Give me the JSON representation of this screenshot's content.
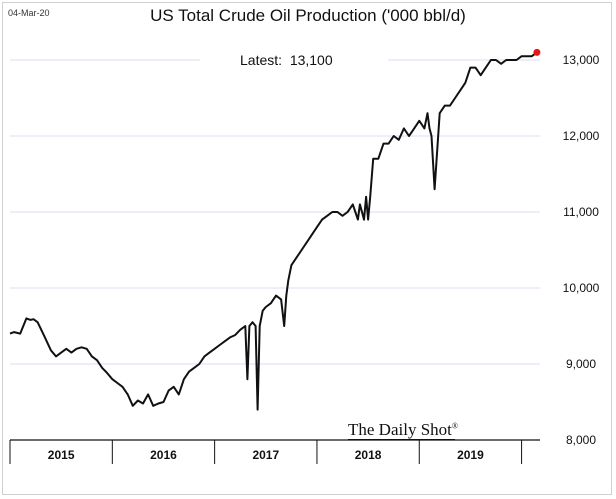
{
  "date_stamp": "04-Mar-20",
  "watermark": "The Daily Shot",
  "watermark_mark": "®",
  "latest": {
    "label": "Latest:",
    "value": "13,100"
  },
  "colors": {
    "line": "#111111",
    "last_point": "#e8141b",
    "grid": "#d9dff0",
    "axis": "#111111"
  },
  "chart_data": {
    "type": "line",
    "title": "US Total Crude Oil Production ('000 bbl/d)",
    "xlabel": "",
    "ylabel": "",
    "ylim": [
      8000,
      13000
    ],
    "yticks": [
      8000,
      9000,
      10000,
      11000,
      12000,
      13000
    ],
    "ytick_labels": [
      "8,000",
      "9,000",
      "10,000",
      "11,000",
      "12,000",
      "13,000"
    ],
    "x_range": [
      2015.0,
      2020.18
    ],
    "year_labels": [
      "2015",
      "2016",
      "2017",
      "2018",
      "2019"
    ],
    "grid": "horizontal",
    "series": [
      {
        "x": [
          2015.0,
          2015.04,
          2015.1,
          2015.16,
          2015.2,
          2015.23,
          2015.27,
          2015.33,
          2015.4,
          2015.45,
          2015.5,
          2015.55,
          2015.6,
          2015.65,
          2015.7,
          2015.75,
          2015.8,
          2015.85,
          2015.9,
          2015.95,
          2016.0,
          2016.05,
          2016.1,
          2016.15,
          2016.2,
          2016.25,
          2016.3,
          2016.35,
          2016.4,
          2016.45,
          2016.5,
          2016.55,
          2016.6,
          2016.65,
          2016.7,
          2016.75,
          2016.8,
          2016.85,
          2016.9,
          2016.95,
          2017.0,
          2017.05,
          2017.1,
          2017.15,
          2017.2,
          2017.25,
          2017.3,
          2017.32,
          2017.34,
          2017.37,
          2017.4,
          2017.42,
          2017.44,
          2017.47,
          2017.5,
          2017.55,
          2017.6,
          2017.65,
          2017.68,
          2017.7,
          2017.72,
          2017.75,
          2017.8,
          2017.85,
          2017.9,
          2017.95,
          2018.0,
          2018.05,
          2018.1,
          2018.15,
          2018.2,
          2018.25,
          2018.3,
          2018.35,
          2018.4,
          2018.42,
          2018.44,
          2018.46,
          2018.48,
          2018.5,
          2018.52,
          2018.55,
          2018.6,
          2018.65,
          2018.7,
          2018.75,
          2018.8,
          2018.85,
          2018.9,
          2018.95,
          2019.0,
          2019.05,
          2019.08,
          2019.1,
          2019.12,
          2019.15,
          2019.2,
          2019.25,
          2019.3,
          2019.35,
          2019.4,
          2019.45,
          2019.5,
          2019.55,
          2019.6,
          2019.65,
          2019.7,
          2019.75,
          2019.8,
          2019.85,
          2019.9,
          2019.95,
          2020.0,
          2020.05,
          2020.1,
          2020.15
        ],
        "values": [
          9400,
          9420,
          9400,
          9600,
          9580,
          9590,
          9550,
          9380,
          9180,
          9100,
          9150,
          9200,
          9150,
          9200,
          9220,
          9200,
          9100,
          9050,
          8950,
          8880,
          8800,
          8750,
          8700,
          8600,
          8450,
          8520,
          8480,
          8600,
          8450,
          8480,
          8500,
          8650,
          8700,
          8600,
          8800,
          8900,
          8950,
          9000,
          9100,
          9150,
          9200,
          9250,
          9300,
          9350,
          9380,
          9450,
          9500,
          8800,
          9500,
          9550,
          9500,
          8400,
          9500,
          9700,
          9750,
          9800,
          9900,
          9850,
          9500,
          9900,
          10100,
          10300,
          10400,
          10500,
          10600,
          10700,
          10800,
          10900,
          10950,
          11000,
          11000,
          10950,
          11000,
          11100,
          10900,
          11100,
          11000,
          10900,
          11200,
          10900,
          11200,
          11700,
          11700,
          11900,
          11900,
          12000,
          11950,
          12100,
          12000,
          12100,
          12200,
          12100,
          12300,
          12100,
          12000,
          11300,
          12300,
          12400,
          12400,
          12500,
          12600,
          12700,
          12900,
          12900,
          12800,
          12900,
          13000,
          13000,
          12950,
          13000,
          13000,
          13000,
          13050,
          13050,
          13050,
          13100
        ]
      }
    ]
  }
}
